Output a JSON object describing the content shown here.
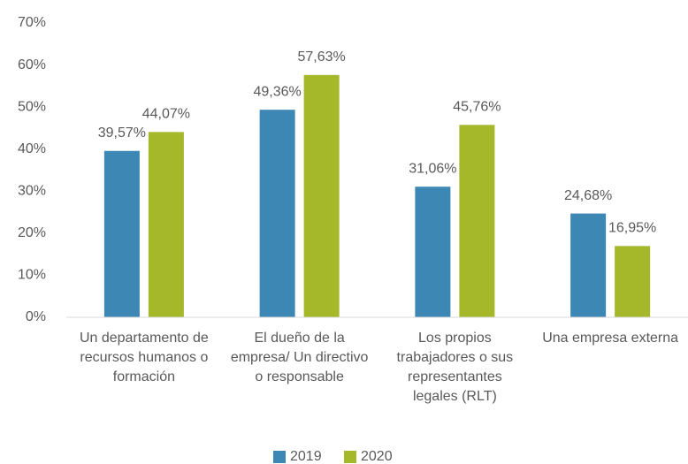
{
  "chart_data": {
    "type": "bar",
    "categories": [
      "Un departamento de recursos humanos o formación",
      "El dueño de la empresa/ Un directivo o responsable",
      "Los propios trabajadores o sus representantes legales (RLT)",
      "Una empresa externa"
    ],
    "series": [
      {
        "name": "2019",
        "color": "#3d87b5",
        "values": [
          39.57,
          49.36,
          31.06,
          24.68
        ],
        "value_labels": [
          "39,57%",
          "49,36%",
          "31,06%",
          "24,68%"
        ]
      },
      {
        "name": "2020",
        "color": "#a5b82a",
        "values": [
          44.07,
          57.63,
          45.76,
          16.95
        ],
        "value_labels": [
          "44,07%",
          "57,63%",
          "45,76%",
          "16,95%"
        ]
      }
    ],
    "ylim": [
      0,
      70
    ],
    "yticks": [
      {
        "value": 0,
        "label": "0%"
      },
      {
        "value": 10,
        "label": "10%"
      },
      {
        "value": 20,
        "label": "20%"
      },
      {
        "value": 30,
        "label": "30%"
      },
      {
        "value": 40,
        "label": "40%"
      },
      {
        "value": 50,
        "label": "50%"
      },
      {
        "value": 60,
        "label": "60%"
      },
      {
        "value": 70,
        "label": "70%"
      }
    ],
    "grid": false,
    "legend": "bottom"
  }
}
